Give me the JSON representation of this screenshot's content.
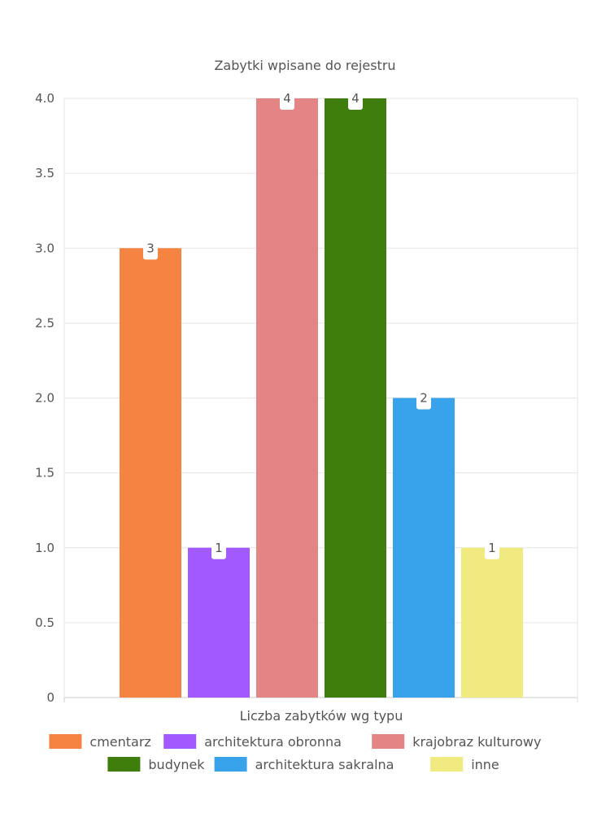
{
  "chart_data": {
    "type": "bar",
    "title": "Zabytki wpisane do rejestru",
    "xlabel": "Liczba zabytków wg typu",
    "ylabel": "",
    "ylim": [
      0,
      4
    ],
    "yticks": [
      "0",
      "0.5",
      "1.0",
      "1.5",
      "2.0",
      "2.5",
      "3.0",
      "3.5",
      "4.0"
    ],
    "grid": true,
    "legend_position": "bottom",
    "series": [
      {
        "name": "cmentarz",
        "value": 3,
        "label": "3",
        "color": "#f58442"
      },
      {
        "name": "architektura obronna",
        "value": 1,
        "label": "1",
        "color": "#a259ff"
      },
      {
        "name": "krajobraz kulturowy",
        "value": 4,
        "label": "4",
        "color": "#e38585"
      },
      {
        "name": "budynek",
        "value": 4,
        "label": "4",
        "color": "#3f7d0c"
      },
      {
        "name": "architektura sakralna",
        "value": 2,
        "label": "2",
        "color": "#38a2ea"
      },
      {
        "name": "inne",
        "value": 1,
        "label": "1",
        "color": "#f0ea80"
      }
    ]
  }
}
